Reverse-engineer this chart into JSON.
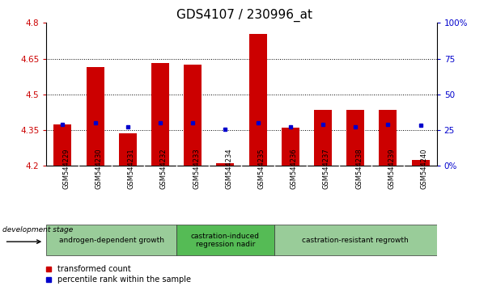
{
  "title": "GDS4107 / 230996_at",
  "samples": [
    "GSM544229",
    "GSM544230",
    "GSM544231",
    "GSM544232",
    "GSM544233",
    "GSM544234",
    "GSM544235",
    "GSM544236",
    "GSM544237",
    "GSM544238",
    "GSM544239",
    "GSM544240"
  ],
  "bar_bottom": 4.2,
  "red_values": [
    4.375,
    4.615,
    4.335,
    4.63,
    4.625,
    4.21,
    4.755,
    4.36,
    4.435,
    4.435,
    4.435,
    4.225
  ],
  "blue_values": [
    4.375,
    4.382,
    4.365,
    4.382,
    4.382,
    4.355,
    4.382,
    4.365,
    4.375,
    4.365,
    4.375,
    4.37
  ],
  "ylim": [
    4.2,
    4.8
  ],
  "y2lim": [
    0,
    100
  ],
  "yticks": [
    4.2,
    4.35,
    4.5,
    4.65,
    4.8
  ],
  "y2ticks": [
    0,
    25,
    50,
    75,
    100
  ],
  "y2ticklabels": [
    "0%",
    "25",
    "50",
    "75",
    "100%"
  ],
  "gridlines": [
    4.35,
    4.5,
    4.65
  ],
  "left_color": "#cc0000",
  "right_color": "#0000cc",
  "bar_color": "#cc0000",
  "dot_color": "#0000cc",
  "bg_color": "#ffffff",
  "group1_label": "androgen-dependent growth",
  "group1_color": "#99cc99",
  "group2_label": "castration-induced\nregression nadir",
  "group2_color": "#55bb55",
  "group3_label": "castration-resistant regrowth",
  "group3_color": "#99cc99",
  "group1_indices": [
    0,
    1,
    2,
    3
  ],
  "group2_indices": [
    4,
    5,
    6
  ],
  "group3_indices": [
    7,
    8,
    9,
    10,
    11
  ],
  "dev_stage_label": "development stage",
  "legend_red": "transformed count",
  "legend_blue": "percentile rank within the sample",
  "bar_width": 0.55,
  "title_fontsize": 11,
  "tick_fontsize": 7.5,
  "sample_fontsize": 6,
  "group_fontsize": 6.5,
  "legend_fontsize": 7
}
